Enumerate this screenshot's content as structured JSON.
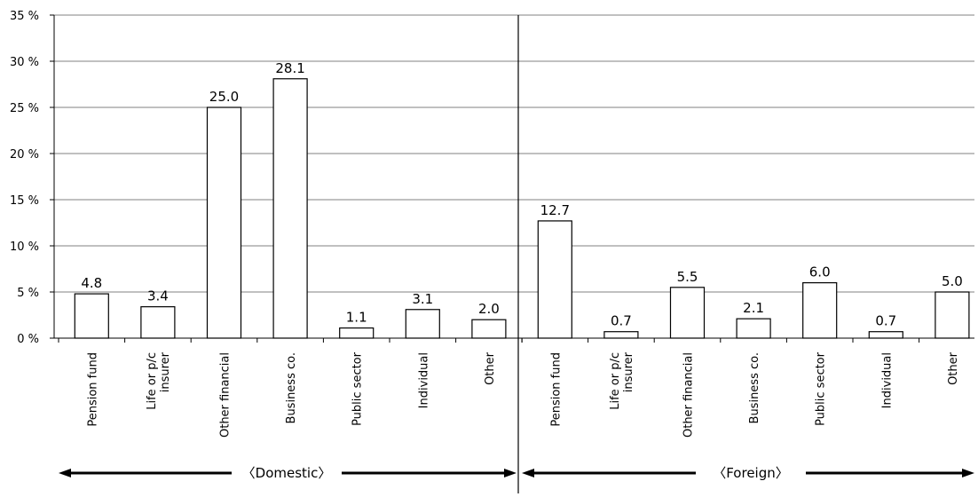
{
  "chart_data": {
    "type": "bar",
    "ylim": [
      0,
      35
    ],
    "y_ticks": [
      0,
      5,
      10,
      15,
      20,
      25,
      30,
      35
    ],
    "y_tick_labels": [
      "0 %",
      "5 %",
      "10 %",
      "15 %",
      "20 %",
      "25 %",
      "30 %",
      "35 %"
    ],
    "grid": true,
    "groups": [
      {
        "label": "〈Domestic〉",
        "categories": [
          "Pension fund",
          "Life or p/c insurer",
          "Other financial",
          "Business co.",
          "Public sector",
          "Individual",
          "Other"
        ],
        "values": [
          4.8,
          3.4,
          25.0,
          28.1,
          1.1,
          3.1,
          2.0
        ],
        "value_labels": [
          "4.8",
          "3.4",
          "25.0",
          "28.1",
          "1.1",
          "3.1",
          "2.0"
        ]
      },
      {
        "label": "〈Foreign〉",
        "categories": [
          "Pension fund",
          "Life or p/c insurer",
          "Other financial",
          "Business co.",
          "Public sector",
          "Individual",
          "Other"
        ],
        "values": [
          12.7,
          0.7,
          5.5,
          2.1,
          6.0,
          0.7,
          5.0
        ],
        "value_labels": [
          "12.7",
          "0.7",
          "5.5",
          "2.1",
          "6.0",
          "0.7",
          "5.0"
        ]
      }
    ]
  },
  "colors": {
    "bar_fill": "#ffffff",
    "bar_stroke": "#000000",
    "grid": "#808080",
    "text": "#000000"
  }
}
